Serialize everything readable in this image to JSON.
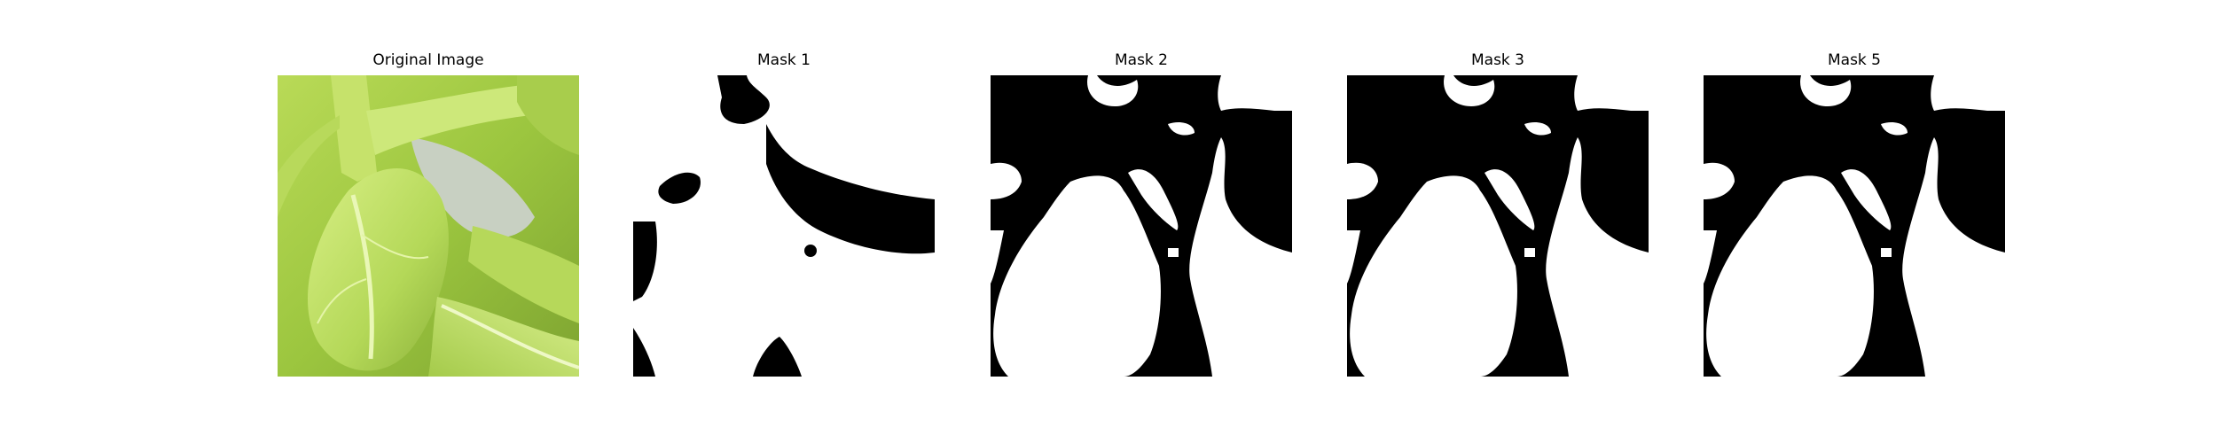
{
  "figure": {
    "panels": [
      {
        "title": "Original Image",
        "kind": "photo"
      },
      {
        "title": "Mask 1",
        "kind": "mask"
      },
      {
        "title": "Mask 2",
        "kind": "mask"
      },
      {
        "title": "Mask 3",
        "kind": "mask"
      },
      {
        "title": "Mask 5",
        "kind": "mask"
      }
    ]
  },
  "colors": {
    "background": "#ffffff",
    "mask_foreground": "#ffffff",
    "mask_background": "#000000",
    "leaf_light": "#d4ec7a",
    "leaf_mid": "#a9d04a",
    "leaf_dark": "#6f9a28",
    "shadow_gray": "#c7cec1"
  }
}
